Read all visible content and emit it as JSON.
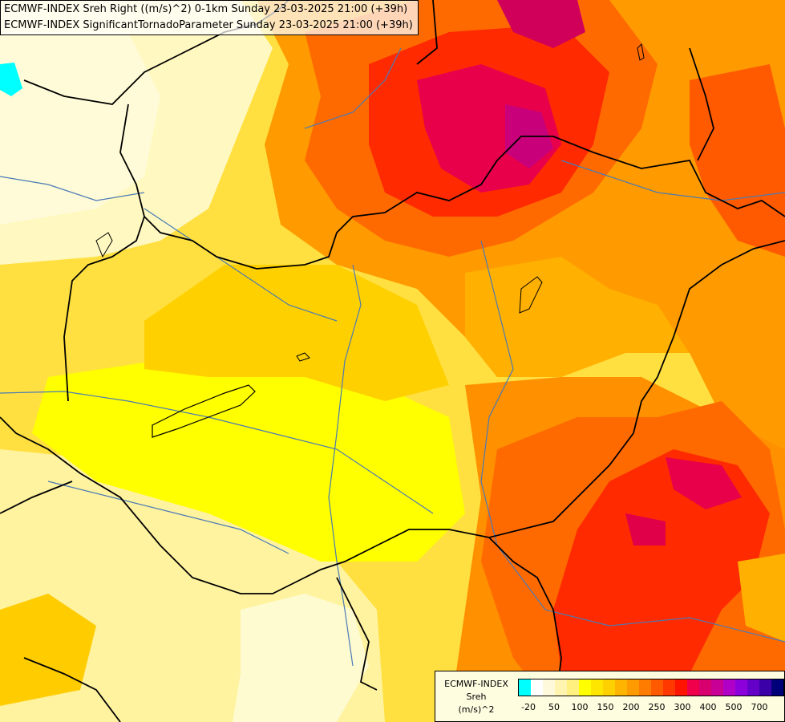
{
  "header": {
    "line1": "ECMWF-INDEX Sreh Right ((m/s)^2) 0-1km Sunday 23-03-2025 21:00 (+39h)",
    "line2": "ECMWF-INDEX SignificantTornadoParameter Sunday 23-03-2025 21:00 (+39h)"
  },
  "legend": {
    "title1": "ECMWF-INDEX",
    "title2": "Sreh",
    "unit": "(m/s)^2",
    "colors": [
      "#00ffff",
      "#ffffff",
      "#fff9dc",
      "#fff4b0",
      "#fff080",
      "#ffff00",
      "#ffe600",
      "#ffd000",
      "#ffb400",
      "#ff9a00",
      "#ff7c00",
      "#ff5a00",
      "#ff3800",
      "#ff1400",
      "#f0004a",
      "#d8006e",
      "#c80096",
      "#b000c8",
      "#8c00dc",
      "#6400c8",
      "#3c00a8",
      "#000078"
    ],
    "ticks": [
      "-20",
      "50",
      "100",
      "150",
      "200",
      "250",
      "300",
      "400",
      "500",
      "700"
    ]
  },
  "map": {
    "field_colors": {
      "pale": "#fffbd0",
      "light_yellow": "#fff3a0",
      "yellow": "#ffff00",
      "gold": "#ffd000",
      "amber": "#ffb000",
      "orange": "#ff9000",
      "dark_orange": "#ff6a00",
      "red": "#ff2a00",
      "crimson": "#e8004a",
      "magenta": "#c8007a",
      "cyan": "#00ffff"
    },
    "border_color": "#000000",
    "river_color": "#4a7ab4"
  }
}
